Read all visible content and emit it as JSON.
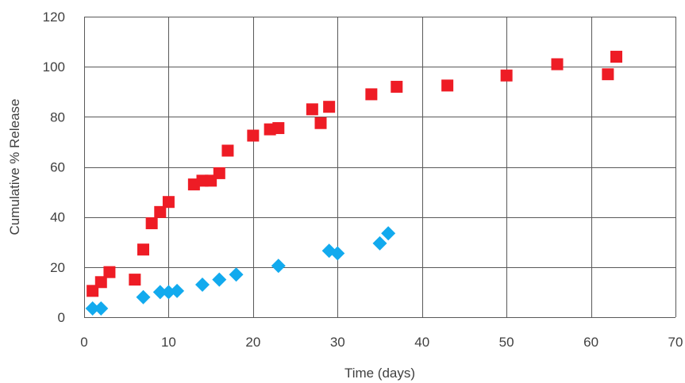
{
  "chart_data": {
    "type": "scatter",
    "title": "",
    "xlabel": "Time (days)",
    "ylabel": "Cumulative % Release",
    "xlim": [
      0,
      70
    ],
    "ylim": [
      0,
      120
    ],
    "xticks": [
      "0",
      "10",
      "20",
      "30",
      "40",
      "50",
      "60",
      "70"
    ],
    "yticks": [
      "0",
      "20",
      "40",
      "60",
      "80",
      "100",
      "120"
    ],
    "grid": true,
    "legend": "none",
    "series": [
      {
        "marker": "square",
        "color": "#ee1c25",
        "points": [
          [
            1,
            10.5
          ],
          [
            2,
            14
          ],
          [
            3,
            18
          ],
          [
            6,
            15
          ],
          [
            7,
            27
          ],
          [
            8,
            37.5
          ],
          [
            9,
            42
          ],
          [
            10,
            46
          ],
          [
            13,
            53
          ],
          [
            14,
            54.5
          ],
          [
            15,
            54.5
          ],
          [
            16,
            57.5
          ],
          [
            17,
            66.5
          ],
          [
            20,
            72.5
          ],
          [
            22,
            75
          ],
          [
            23,
            75.5
          ],
          [
            27,
            83
          ],
          [
            28,
            77.5
          ],
          [
            29,
            84
          ],
          [
            34,
            89
          ],
          [
            37,
            92
          ],
          [
            43,
            92.5
          ],
          [
            50,
            96.5
          ],
          [
            56,
            101
          ],
          [
            62,
            97
          ],
          [
            63,
            104
          ]
        ]
      },
      {
        "marker": "diamond",
        "color": "#12aaee",
        "points": [
          [
            1,
            3.5
          ],
          [
            2,
            3.5
          ],
          [
            7,
            8
          ],
          [
            9,
            10
          ],
          [
            10,
            10
          ],
          [
            11,
            10.5
          ],
          [
            14,
            13
          ],
          [
            16,
            15
          ],
          [
            18,
            17
          ],
          [
            23,
            20.5
          ],
          [
            29,
            26.5
          ],
          [
            30,
            25.5
          ],
          [
            35,
            29.5
          ],
          [
            36,
            33.5
          ]
        ]
      }
    ]
  }
}
